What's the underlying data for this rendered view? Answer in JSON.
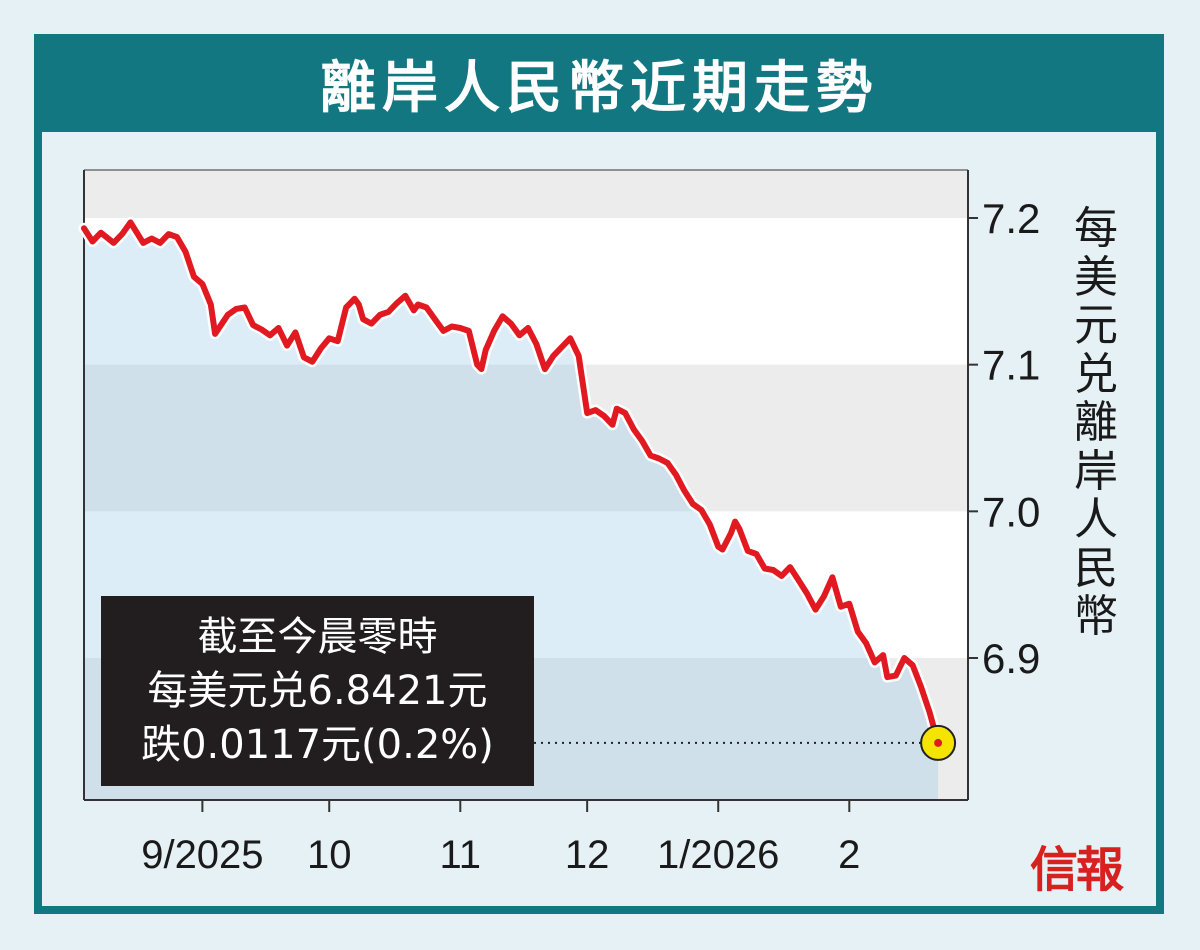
{
  "title": "離岸人民幣近期走勢",
  "logo": "信報",
  "note": {
    "line1": "截至今晨零時",
    "line2": "每美元兑6.8421元",
    "line3": "跌0.0117元(0.2%)"
  },
  "colors": {
    "frame": "#137781",
    "line": "#e11a22",
    "highlight_dot": "#f4e400",
    "note_bg": "#221e1f",
    "logo": "#d8201f"
  },
  "chart_data": {
    "type": "line",
    "title": "離岸人民幣近期走勢",
    "ylabel": "每美元兑離岸人民幣",
    "ylabel_chars": [
      "每",
      "美",
      "元",
      "兑",
      "離",
      "岸",
      "人",
      "民",
      "幣"
    ],
    "y_ticks": [
      7.2,
      7.1,
      7.0,
      6.9
    ],
    "y_tick_labels": [
      "7.2",
      "7.1",
      "7.0",
      "6.9"
    ],
    "ylim": [
      6.81,
      7.23
    ],
    "y_axis_position": "right",
    "x_ticks": [
      "9/2025",
      "10",
      "11",
      "12",
      "1/2026",
      "2"
    ],
    "x_tick_dates": [
      "2025-09-01",
      "2025-10-01",
      "2025-11-01",
      "2025-12-01",
      "2026-01-01",
      "2026-02-01"
    ],
    "xlim": [
      "2025-08-04",
      "2026-02-26"
    ],
    "grid": "alternating horizontal bands",
    "series": [
      {
        "points": [
          [
            "2025-08-04",
            7.193
          ],
          [
            "2025-08-06",
            7.184
          ],
          [
            "2025-08-08",
            7.19
          ],
          [
            "2025-08-11",
            7.183
          ],
          [
            "2025-08-13",
            7.189
          ],
          [
            "2025-08-15",
            7.197
          ],
          [
            "2025-08-18",
            7.183
          ],
          [
            "2025-08-20",
            7.186
          ],
          [
            "2025-08-22",
            7.183
          ],
          [
            "2025-08-24",
            7.189
          ],
          [
            "2025-08-26",
            7.187
          ],
          [
            "2025-08-28",
            7.177
          ],
          [
            "2025-08-30",
            7.16
          ],
          [
            "2025-09-01",
            7.155
          ],
          [
            "2025-09-03",
            7.141
          ],
          [
            "2025-09-04",
            7.121
          ],
          [
            "2025-09-07",
            7.134
          ],
          [
            "2025-09-09",
            7.138
          ],
          [
            "2025-09-11",
            7.139
          ],
          [
            "2025-09-13",
            7.127
          ],
          [
            "2025-09-15",
            7.124
          ],
          [
            "2025-09-17",
            7.12
          ],
          [
            "2025-09-19",
            7.125
          ],
          [
            "2025-09-21",
            7.113
          ],
          [
            "2025-09-23",
            7.122
          ],
          [
            "2025-09-25",
            7.105
          ],
          [
            "2025-09-27",
            7.102
          ],
          [
            "2025-09-29",
            7.111
          ],
          [
            "2025-10-01",
            7.118
          ],
          [
            "2025-10-03",
            7.116
          ],
          [
            "2025-10-05",
            7.139
          ],
          [
            "2025-10-07",
            7.145
          ],
          [
            "2025-10-08",
            7.141
          ],
          [
            "2025-10-09",
            7.131
          ],
          [
            "2025-10-11",
            7.128
          ],
          [
            "2025-10-13",
            7.134
          ],
          [
            "2025-10-15",
            7.136
          ],
          [
            "2025-10-17",
            7.142
          ],
          [
            "2025-10-19",
            7.147
          ],
          [
            "2025-10-21",
            7.137
          ],
          [
            "2025-10-22",
            7.141
          ],
          [
            "2025-10-24",
            7.139
          ],
          [
            "2025-10-26",
            7.131
          ],
          [
            "2025-10-28",
            7.123
          ],
          [
            "2025-10-30",
            7.126
          ],
          [
            "2025-11-01",
            7.125
          ],
          [
            "2025-11-03",
            7.123
          ],
          [
            "2025-11-05",
            7.1
          ],
          [
            "2025-11-06",
            7.097
          ],
          [
            "2025-11-07",
            7.11
          ],
          [
            "2025-11-09",
            7.123
          ],
          [
            "2025-11-11",
            7.133
          ],
          [
            "2025-11-13",
            7.128
          ],
          [
            "2025-11-15",
            7.12
          ],
          [
            "2025-11-17",
            7.125
          ],
          [
            "2025-11-19",
            7.114
          ],
          [
            "2025-11-21",
            7.097
          ],
          [
            "2025-11-23",
            7.106
          ],
          [
            "2025-11-25",
            7.112
          ],
          [
            "2025-11-27",
            7.118
          ],
          [
            "2025-11-29",
            7.106
          ],
          [
            "2025-12-01",
            7.067
          ],
          [
            "2025-12-03",
            7.069
          ],
          [
            "2025-12-05",
            7.065
          ],
          [
            "2025-12-07",
            7.059
          ],
          [
            "2025-12-08",
            7.07
          ],
          [
            "2025-12-10",
            7.067
          ],
          [
            "2025-12-12",
            7.056
          ],
          [
            "2025-12-14",
            7.048
          ],
          [
            "2025-12-16",
            7.038
          ],
          [
            "2025-12-18",
            7.036
          ],
          [
            "2025-12-20",
            7.033
          ],
          [
            "2025-12-22",
            7.025
          ],
          [
            "2025-12-24",
            7.014
          ],
          [
            "2025-12-26",
            7.005
          ],
          [
            "2025-12-28",
            7.001
          ],
          [
            "2025-12-30",
            6.991
          ],
          [
            "2026-01-01",
            6.976
          ],
          [
            "2026-01-02",
            6.974
          ],
          [
            "2026-01-04",
            6.985
          ],
          [
            "2026-01-05",
            6.993
          ],
          [
            "2026-01-06",
            6.988
          ],
          [
            "2026-01-08",
            6.973
          ],
          [
            "2026-01-10",
            6.971
          ],
          [
            "2026-01-12",
            6.961
          ],
          [
            "2026-01-14",
            6.96
          ],
          [
            "2026-01-16",
            6.956
          ],
          [
            "2026-01-18",
            6.962
          ],
          [
            "2026-01-20",
            6.953
          ],
          [
            "2026-01-22",
            6.944
          ],
          [
            "2026-01-24",
            6.933
          ],
          [
            "2026-01-26",
            6.942
          ],
          [
            "2026-01-28",
            6.955
          ],
          [
            "2026-01-30",
            6.935
          ],
          [
            "2026-02-01",
            6.937
          ],
          [
            "2026-02-03",
            6.918
          ],
          [
            "2026-02-05",
            6.91
          ],
          [
            "2026-02-07",
            6.897
          ],
          [
            "2026-02-09",
            6.902
          ],
          [
            "2026-02-10",
            6.887
          ],
          [
            "2026-02-12",
            6.888
          ],
          [
            "2026-02-14",
            6.9
          ],
          [
            "2026-02-16",
            6.895
          ],
          [
            "2026-02-18",
            6.88
          ],
          [
            "2026-02-20",
            6.863
          ],
          [
            "2026-02-22",
            6.8421
          ]
        ]
      }
    ],
    "last_value": 6.8421,
    "annotations": [
      "截至今晨零時",
      "每美元兑6.8421元",
      "跌0.0117元(0.2%)"
    ]
  }
}
